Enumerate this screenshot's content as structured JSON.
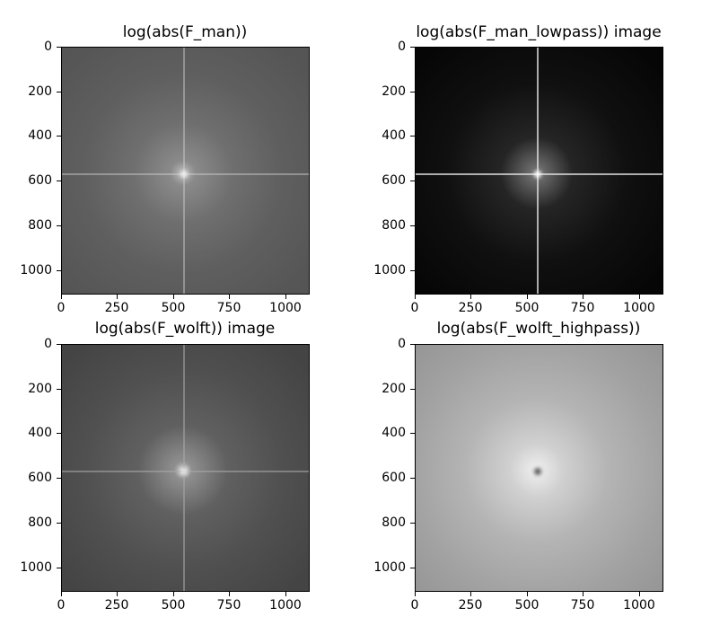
{
  "figure": {
    "panels": [
      {
        "id": "man",
        "title": "log(abs(F_man))",
        "style": {
          "bg": "radial-gradient(circle at 49% 51%, #bdbdbd 0px, #8a8a8a 14px, #6f6f6f 55px, #5f5f5f 110px, #555555 180px)",
          "line": "rgba(210,210,210,0.45)",
          "center": "#f2f2f2"
        }
      },
      {
        "id": "man_lowpass",
        "title": "log(abs(F_man_lowpass)) image",
        "style": {
          "bg": "radial-gradient(circle at 49% 51%, #7a7a7a 0px, #252525 40px, #101010 100px, #060606 180px)",
          "line": "rgba(225,225,225,0.75)",
          "center": "#ffffff"
        }
      },
      {
        "id": "wolft",
        "title": "log(abs(F_wolft)) image",
        "style": {
          "bg": "radial-gradient(circle at 49% 51%, #d8d8d8 0px, #8f8f8f 10px, #606060 50px, #505050 110px, #444444 180px)",
          "line": "rgba(170,170,170,0.55)",
          "center": "#e6e6e6"
        }
      },
      {
        "id": "wolft_highpass",
        "title": "log(abs(F_wolft_highpass))",
        "style": {
          "bg": "radial-gradient(circle at 49% 51%, #f0f0f0 0px, #d0d0d0 30px, #b4b4b4 80px, #a2a2a2 140px, #949494 200px)",
          "line": "rgba(0,0,0,0)",
          "center": "#5a5a5a"
        }
      }
    ],
    "x_ticks": [
      "0",
      "250",
      "500",
      "750",
      "1000"
    ],
    "y_ticks": [
      "0",
      "200",
      "400",
      "600",
      "800",
      "1000"
    ],
    "x_tick_values": [
      0,
      250,
      500,
      750,
      1000
    ],
    "y_tick_values": [
      0,
      200,
      400,
      600,
      800,
      1000
    ],
    "axis_max": 1110
  }
}
